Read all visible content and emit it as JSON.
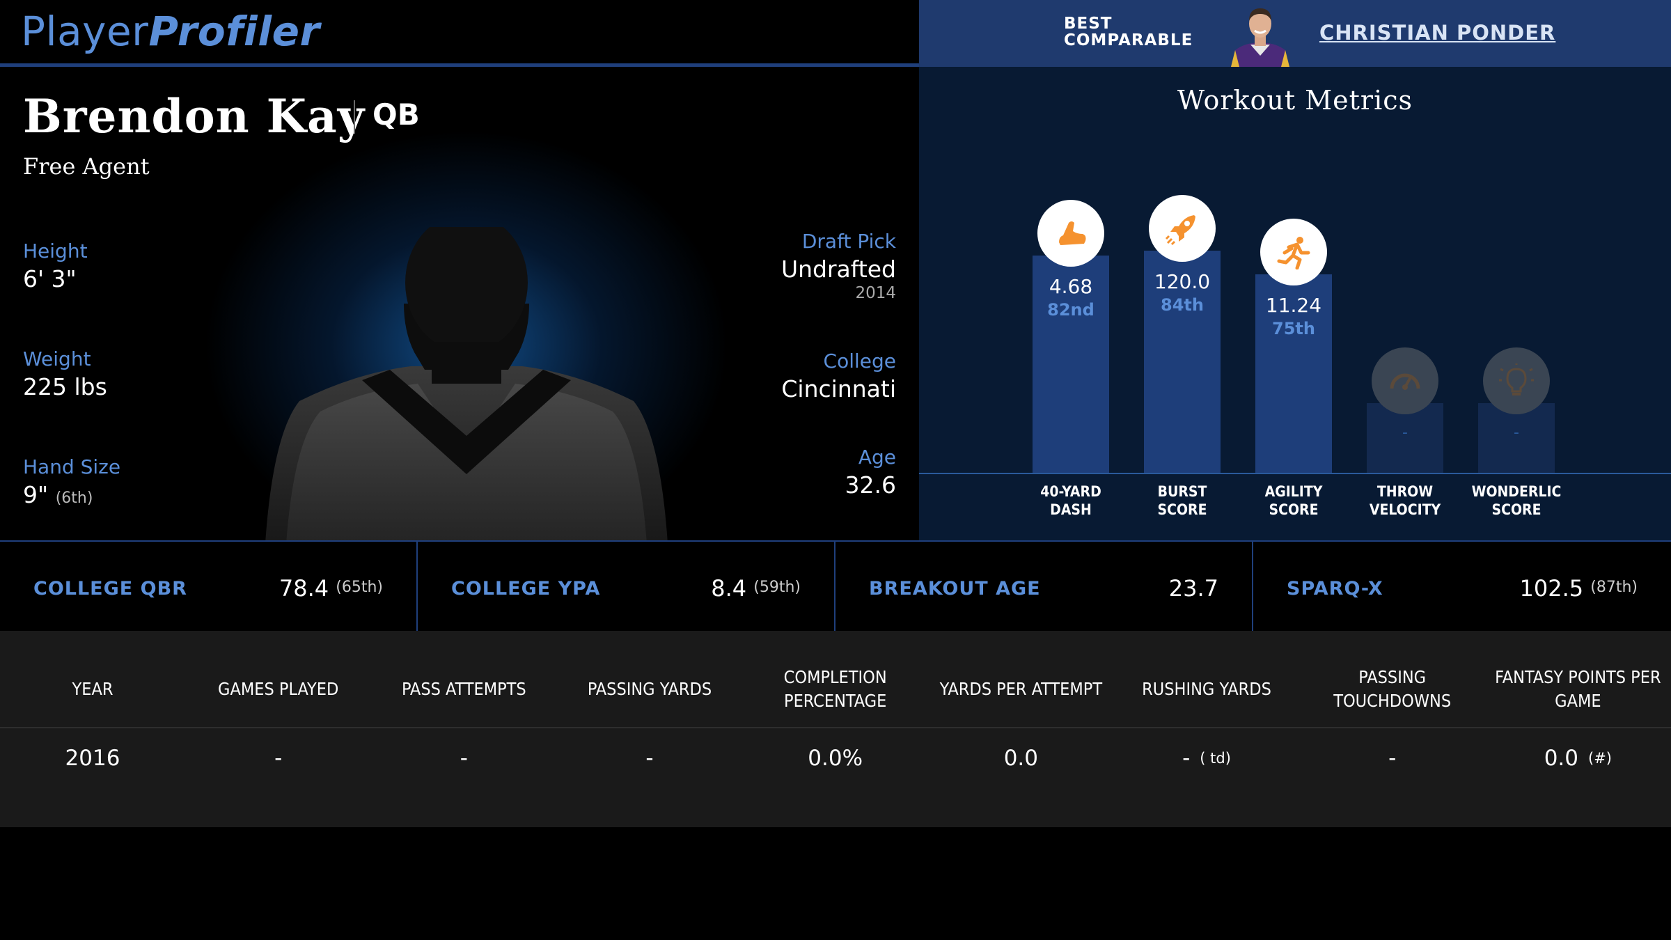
{
  "brand": {
    "part1": "Player",
    "part2": "Profiler"
  },
  "comparable": {
    "label": "BEST\nCOMPARABLE",
    "name": "CHRISTIAN PONDER"
  },
  "player": {
    "name": "Brendon Kay",
    "position": "QB",
    "team": "Free Agent",
    "height": {
      "label": "Height",
      "value": "6' 3\""
    },
    "weight": {
      "label": "Weight",
      "value": "225 lbs"
    },
    "hand_size": {
      "label": "Hand Size",
      "value": "9\"",
      "rank": "(6th)"
    },
    "draft_pick": {
      "label": "Draft Pick",
      "value": "Undrafted",
      "year": "2014"
    },
    "college": {
      "label": "College",
      "value": "Cincinnati"
    },
    "age": {
      "label": "Age",
      "value": "32.6"
    }
  },
  "workout": {
    "title": "Workout Metrics",
    "metrics": [
      {
        "label": "40-YARD\nDASH",
        "value": "4.68",
        "rank": "82nd",
        "percentile": 82,
        "icon": "running-shoe-icon",
        "active": true
      },
      {
        "label": "BURST\nSCORE",
        "value": "120.0",
        "rank": "84th",
        "percentile": 84,
        "icon": "rocket-icon",
        "active": true
      },
      {
        "label": "AGILITY\nSCORE",
        "value": "11.24",
        "rank": "75th",
        "percentile": 75,
        "icon": "sprinter-icon",
        "active": true
      },
      {
        "label": "THROW\nVELOCITY",
        "value": "-",
        "rank": "",
        "percentile": 25,
        "icon": "speedometer-icon",
        "active": false
      },
      {
        "label": "WONDERLIC\nSCORE",
        "value": "-",
        "rank": "",
        "percentile": 25,
        "icon": "lightbulb-icon",
        "active": false
      }
    ],
    "colors": {
      "bar": "#1e3e7a",
      "bar_inactive": "#13294f",
      "icon": "#f5922f",
      "icon_inactive": "#5b4a3a"
    }
  },
  "key_stats": [
    {
      "label": "COLLEGE QBR",
      "value": "78.4",
      "rank": "(65th)"
    },
    {
      "label": "COLLEGE YPA",
      "value": "8.4",
      "rank": "(59th)"
    },
    {
      "label": "BREAKOUT AGE",
      "value": "23.7",
      "rank": ""
    },
    {
      "label": "SPARQ-X",
      "value": "102.5",
      "rank": "(87th)"
    }
  ],
  "table": {
    "headers": [
      "YEAR",
      "GAMES PLAYED",
      "PASS ATTEMPTS",
      "PASSING YARDS",
      "COMPLETION PERCENTAGE",
      "YARDS PER ATTEMPT",
      "RUSHING YARDS",
      "PASSING TOUCHDOWNS",
      "FANTASY POINTS PER GAME"
    ],
    "rows": [
      {
        "year": "2016",
        "games": "-",
        "attempts": "-",
        "pass_yards": "-",
        "comp_pct": "0.0%",
        "ypa": "0.0",
        "rush_yards": "-",
        "rush_note": "( td)",
        "pass_td": "-",
        "fppg": "0.0",
        "fppg_note": "(#)"
      }
    ]
  },
  "theme": {
    "accent": "#5b8fd9",
    "navy": "#1f3a6e",
    "orange": "#f5922f"
  }
}
